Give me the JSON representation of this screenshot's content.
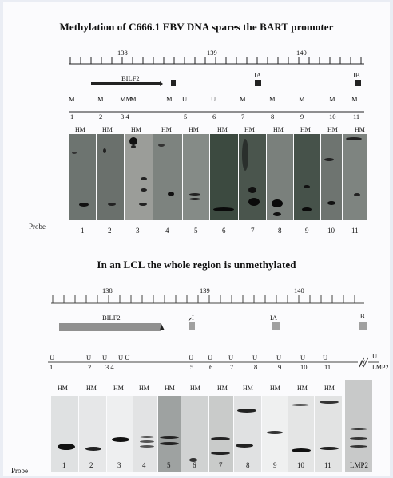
{
  "panel_a": {
    "title": "Methylation of C666.1 EBV DNA spares the BART promoter",
    "scale_labels": [
      "138",
      "139",
      "140"
    ],
    "gene_labels": [
      "BILF2",
      "I",
      "IA",
      "IB"
    ],
    "methylation_marks": [
      "M",
      "M",
      "MM",
      "M",
      "M",
      "U",
      "U",
      "M",
      "M",
      "M",
      "M",
      "M",
      "M"
    ],
    "site_numbers": [
      "1",
      "2",
      "3 4",
      "4",
      "5",
      "6",
      "7",
      "8",
      "9",
      "10",
      "11"
    ],
    "hm_label": "HM",
    "probe_label": "Probe",
    "lane_numbers": [
      "1",
      "2",
      "3",
      "4",
      "5",
      "6",
      "7",
      "8",
      "9",
      "10",
      "11"
    ]
  },
  "panel_b": {
    "title": "In an LCL the whole region is unmethylated",
    "scale_labels": [
      "138",
      "139",
      "140"
    ],
    "gene_labels": [
      "BILF2",
      "I",
      "IA",
      "IB"
    ],
    "methylation_marks": [
      "U",
      "U",
      "U",
      "U U",
      "U",
      "U",
      "U",
      "U",
      "U",
      "U",
      "U",
      "U"
    ],
    "site_numbers": [
      "1",
      "2",
      "3 4",
      "5",
      "6",
      "7",
      "8",
      "9",
      "10",
      "11",
      "LMP2"
    ],
    "break_mark": "//",
    "hm_label": "HM",
    "probe_label": "Probe",
    "lane_numbers": [
      "1",
      "2",
      "3",
      "4",
      "5",
      "6",
      "7",
      "8",
      "9",
      "10",
      "11",
      "LMP2"
    ]
  }
}
